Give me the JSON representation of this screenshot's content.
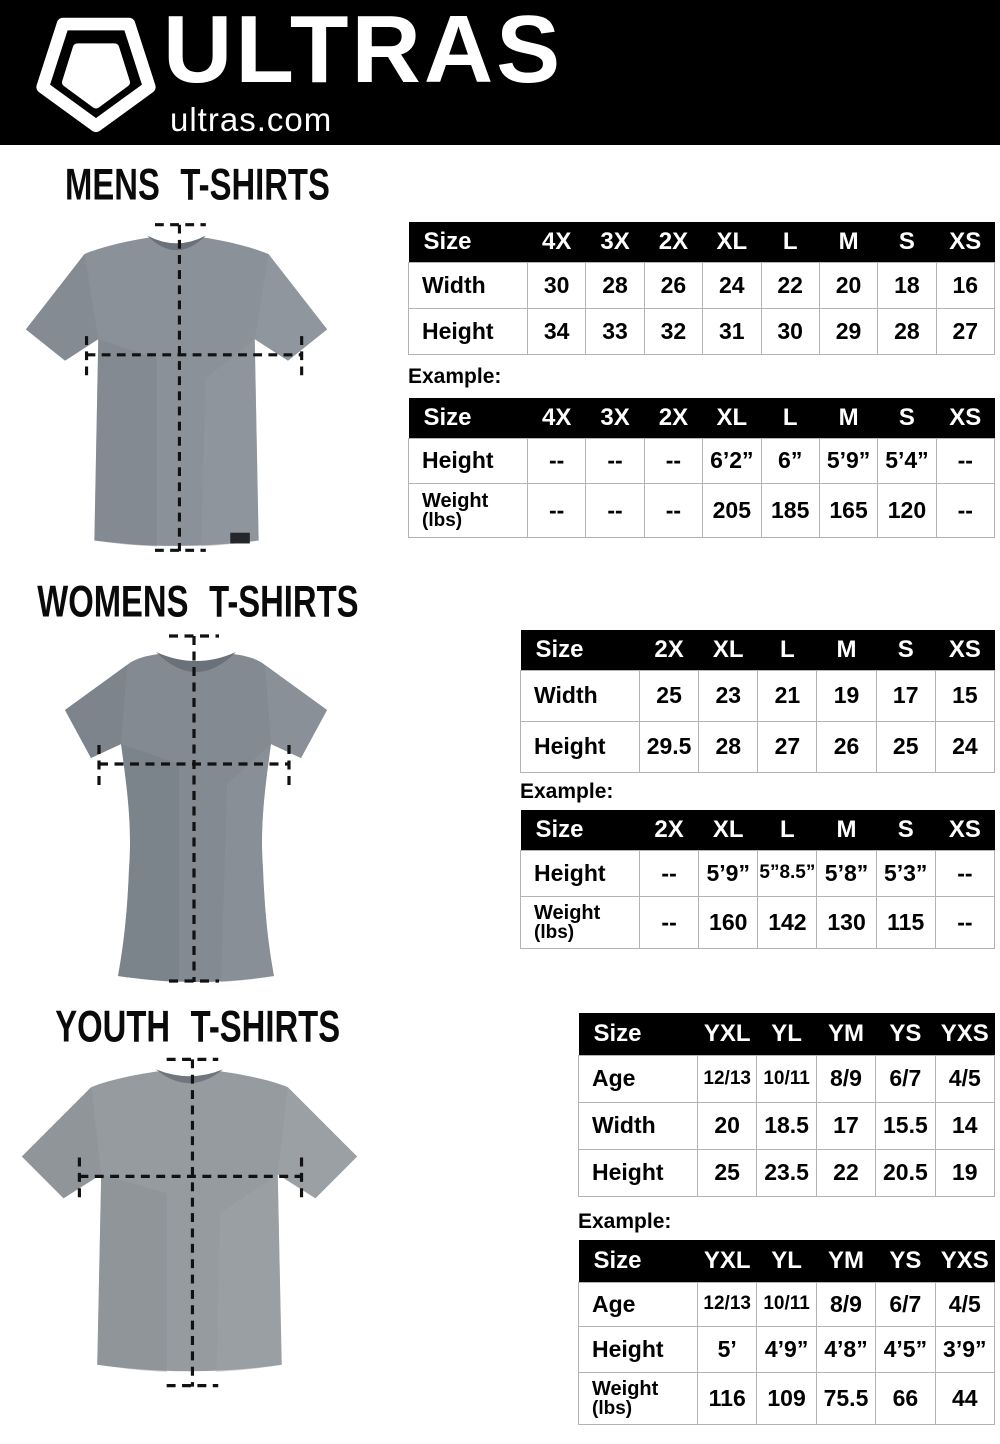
{
  "header": {
    "brand": "ULTRAS",
    "site": "ultras.com",
    "logo_icon": "pentagon-shield-icon",
    "bg_color": "#000000"
  },
  "colors": {
    "table_header_bg": "#000000",
    "table_grid": "#b3b3b3",
    "mens_shirt": "#8a9198",
    "womens_shirt": "#838a91",
    "youth_shirt": "#969b9f",
    "measure_line": "#111111"
  },
  "sections": [
    {
      "id": "mens",
      "title": "MENS T-SHIRTS",
      "example_label": "Example:",
      "size_table": {
        "header": [
          "Size",
          "4X",
          "3X",
          "2X",
          "XL",
          "L",
          "M",
          "S",
          "XS"
        ],
        "rows": [
          {
            "label": "Width",
            "values": [
              "30",
              "28",
              "26",
              "24",
              "22",
              "20",
              "18",
              "16"
            ]
          },
          {
            "label": "Height",
            "values": [
              "34",
              "33",
              "32",
              "31",
              "30",
              "29",
              "28",
              "27"
            ]
          }
        ]
      },
      "example_table": {
        "header": [
          "Size",
          "4X",
          "3X",
          "2X",
          "XL",
          "L",
          "M",
          "S",
          "XS"
        ],
        "rows": [
          {
            "label": "Height",
            "values": [
              "--",
              "--",
              "--",
              "6’2”",
              "6”",
              "5’9”",
              "5’4”",
              "--"
            ]
          },
          {
            "label": "Weight",
            "label2": "(lbs)",
            "values": [
              "--",
              "--",
              "--",
              "205",
              "185",
              "165",
              "120",
              "--"
            ]
          }
        ]
      }
    },
    {
      "id": "womens",
      "title": "WOMENS T-SHIRTS",
      "example_label": "Example:",
      "size_table": {
        "header": [
          "Size",
          "2X",
          "XL",
          "L",
          "M",
          "S",
          "XS"
        ],
        "rows": [
          {
            "label": "Width",
            "values": [
              "25",
              "23",
              "21",
              "19",
              "17",
              "15"
            ]
          },
          {
            "label": "Height",
            "values": [
              "29.5",
              "28",
              "27",
              "26",
              "25",
              "24"
            ]
          }
        ]
      },
      "example_table": {
        "header": [
          "Size",
          "2X",
          "XL",
          "L",
          "M",
          "S",
          "XS"
        ],
        "rows": [
          {
            "label": "Height",
            "values": [
              "--",
              "5’9”",
              "5”8.5”",
              "5’8”",
              "5’3”",
              "--"
            ]
          },
          {
            "label": "Weight",
            "label2": "(lbs)",
            "values": [
              "--",
              "160",
              "142",
              "130",
              "115",
              "--"
            ]
          }
        ]
      }
    },
    {
      "id": "youth",
      "title": "YOUTH T-SHIRTS",
      "example_label": "Example:",
      "size_table": {
        "header": [
          "Size",
          "YXL",
          "YL",
          "YM",
          "YS",
          "YXS"
        ],
        "rows": [
          {
            "label": "Age",
            "values": [
              "12/13",
              "10/11",
              "8/9",
              "6/7",
              "4/5"
            ]
          },
          {
            "label": "Width",
            "values": [
              "20",
              "18.5",
              "17",
              "15.5",
              "14"
            ]
          },
          {
            "label": "Height",
            "values": [
              "25",
              "23.5",
              "22",
              "20.5",
              "19"
            ]
          }
        ]
      },
      "example_table": {
        "header": [
          "Size",
          "YXL",
          "YL",
          "YM",
          "YS",
          "YXS"
        ],
        "rows": [
          {
            "label": "Age",
            "values": [
              "12/13",
              "10/11",
              "8/9",
              "6/7",
              "4/5"
            ]
          },
          {
            "label": "Height",
            "values": [
              "5’",
              "4’9”",
              "4’8”",
              "4’5”",
              "3’9”"
            ]
          },
          {
            "label": "Weight",
            "label2": "(lbs)",
            "values": [
              "116",
              "109",
              "75.5",
              "66",
              "44"
            ]
          }
        ]
      }
    }
  ]
}
